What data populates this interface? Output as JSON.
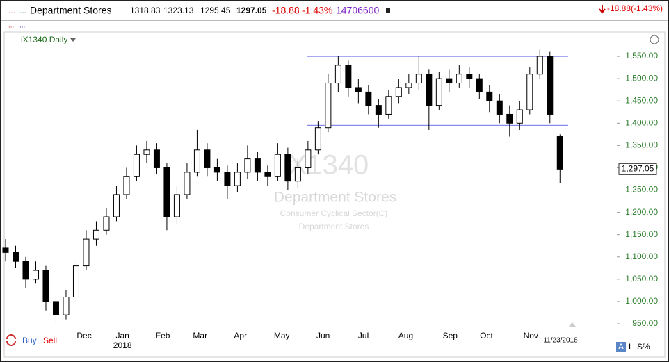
{
  "header": {
    "dots1": "...",
    "dots2": "...",
    "name": "Department Stores",
    "open": 1318.83,
    "high": 1323.13,
    "low": 1295.45,
    "close": 1297.05,
    "change": -18.88,
    "change_pct": "-1.43%",
    "volume": 14706600,
    "right_change": "-18.88(-1.43%)",
    "row2_dots1": "...",
    "row2_dots2": "...",
    "symbol_period": "iX1340 Daily"
  },
  "watermark": {
    "symbol": "iX1340",
    "name": "Department Stores",
    "sector": "Consumer Cyclical Sector(C)",
    "industry": "Department Stores"
  },
  "footer": {
    "buy": "Buy",
    "sell": "Sell",
    "a": "A",
    "l": "L",
    "s": "S%"
  },
  "chart_data": {
    "type": "candlestick",
    "up_color": "#ffffff",
    "down_color": "#000000",
    "line_color": "#8a8aee",
    "x": [
      0,
      1,
      2,
      3,
      4,
      5,
      6,
      7,
      8,
      9,
      10,
      11,
      12,
      13,
      14,
      15,
      16,
      17,
      18,
      19,
      20,
      21,
      22,
      23,
      24,
      25,
      26,
      27,
      28,
      29,
      30,
      31,
      32,
      33,
      34,
      35,
      36,
      37,
      38,
      39,
      40,
      41,
      42,
      43,
      44,
      45,
      46,
      47,
      48,
      49,
      50,
      51,
      52,
      53,
      54,
      55
    ],
    "open": [
      1120,
      1110,
      1090,
      1050,
      1070,
      1000,
      970,
      1010,
      1080,
      1140,
      1160,
      1190,
      1240,
      1280,
      1330,
      1340,
      1300,
      1190,
      1240,
      1290,
      1340,
      1300,
      1290,
      1260,
      1290,
      1320,
      1290,
      1280,
      1330,
      1270,
      1300,
      1340,
      1390,
      1490,
      1530,
      1480,
      1470,
      1440,
      1420,
      1460,
      1480,
      1490,
      1510,
      1440,
      1500,
      1490,
      1510,
      1500,
      1470,
      1450,
      1420,
      1400,
      1430,
      1510,
      1550,
      1370
    ],
    "high": [
      1140,
      1125,
      1100,
      1090,
      1080,
      1015,
      1025,
      1095,
      1160,
      1180,
      1210,
      1260,
      1300,
      1350,
      1360,
      1355,
      1310,
      1260,
      1310,
      1385,
      1355,
      1320,
      1305,
      1310,
      1350,
      1335,
      1305,
      1355,
      1345,
      1320,
      1360,
      1405,
      1510,
      1550,
      1540,
      1500,
      1485,
      1455,
      1475,
      1500,
      1510,
      1550,
      1520,
      1515,
      1520,
      1530,
      1525,
      1510,
      1485,
      1465,
      1440,
      1450,
      1525,
      1565,
      1560,
      1375
    ],
    "low": [
      1090,
      1075,
      1030,
      1040,
      980,
      950,
      960,
      1000,
      1070,
      1125,
      1150,
      1180,
      1230,
      1270,
      1310,
      1285,
      1160,
      1175,
      1230,
      1280,
      1280,
      1270,
      1230,
      1245,
      1275,
      1270,
      1260,
      1270,
      1250,
      1255,
      1285,
      1330,
      1380,
      1470,
      1460,
      1445,
      1420,
      1390,
      1410,
      1445,
      1465,
      1475,
      1385,
      1430,
      1470,
      1480,
      1480,
      1455,
      1425,
      1400,
      1370,
      1385,
      1420,
      1500,
      1400,
      1265
    ],
    "close": [
      1110,
      1090,
      1050,
      1070,
      1000,
      970,
      1010,
      1080,
      1140,
      1160,
      1190,
      1240,
      1280,
      1330,
      1340,
      1300,
      1190,
      1240,
      1290,
      1340,
      1300,
      1290,
      1260,
      1290,
      1320,
      1290,
      1280,
      1330,
      1270,
      1300,
      1340,
      1390,
      1490,
      1530,
      1480,
      1470,
      1440,
      1420,
      1460,
      1480,
      1490,
      1510,
      1440,
      1500,
      1490,
      1510,
      1500,
      1470,
      1450,
      1420,
      1400,
      1430,
      1510,
      1550,
      1420,
      1297.05
    ],
    "hlines": [
      1550,
      1395
    ],
    "last_price": {
      "value": 1297.05,
      "label": "1,297.05"
    },
    "xlim": [
      0,
      60.5
    ],
    "ylim": [
      936,
      1575
    ],
    "xticks": [
      {
        "value": 7.8,
        "label": "Dec"
      },
      {
        "value": 11.6,
        "label": "Jan"
      },
      {
        "value": 15.6,
        "label": "Feb"
      },
      {
        "value": 19.3,
        "label": "Mar"
      },
      {
        "value": 23.3,
        "label": "Apr"
      },
      {
        "value": 27.4,
        "label": "May"
      },
      {
        "value": 31.5,
        "label": "Jun"
      },
      {
        "value": 35.5,
        "label": "Jul"
      },
      {
        "value": 39.7,
        "label": "Aug"
      },
      {
        "value": 44.1,
        "label": "Sep"
      },
      {
        "value": 47.7,
        "label": "Oct"
      },
      {
        "value": 52.1,
        "label": "Nov"
      }
    ],
    "year_label": "2018",
    "end_date": "11/23/2018",
    "yticks": [
      {
        "value": 950,
        "label": "950.00"
      },
      {
        "value": 1000,
        "label": "1,000.00"
      },
      {
        "value": 1050,
        "label": "1,050.00"
      },
      {
        "value": 1100,
        "label": "1,100.00"
      },
      {
        "value": 1150,
        "label": "1,150.00"
      },
      {
        "value": 1200,
        "label": "1,200.00"
      },
      {
        "value": 1250,
        "label": "1,250.00"
      },
      {
        "value": 1300,
        "label": "1,300.00"
      },
      {
        "value": 1350,
        "label": "1,350.00"
      },
      {
        "value": 1400,
        "label": "1,400.00"
      },
      {
        "value": 1450,
        "label": "1,450.00"
      },
      {
        "value": 1500,
        "label": "1,500.00"
      },
      {
        "value": 1550,
        "label": "1,550.00"
      }
    ]
  }
}
